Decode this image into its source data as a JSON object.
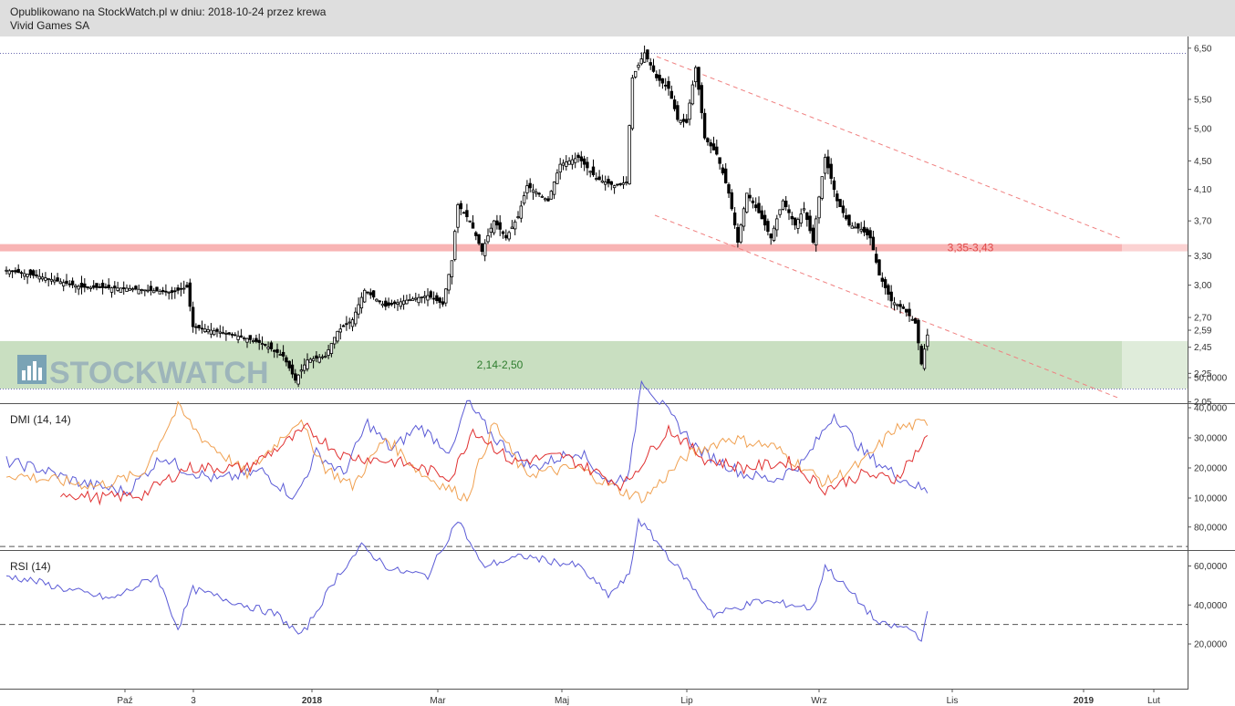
{
  "header": {
    "line1": "Opublikowano na StockWatch.pl w dniu: 2018-10-24 przez krewa",
    "line2": "Vivid Games SA"
  },
  "watermark": {
    "text": "STOCKWATCH",
    "icon": "bar-chart-icon"
  },
  "colors": {
    "candle": "#000000",
    "resistance_zone": "#f8b4b4",
    "support_zone": "#c9dfc1",
    "trend_channel": "#f08080",
    "dmi_plus": "#5b5bd6",
    "dmi_minus": "#f0a050",
    "adx": "#e03030",
    "rsi": "#5b5bd6"
  },
  "chart_data": [
    {
      "type": "candlestick",
      "title": "Vivid Games SA",
      "ylim": [
        2.05,
        6.5
      ],
      "y_scale": "log",
      "y_ticks": [
        "6,50",
        "5,50",
        "5,00",
        "4,50",
        "4,10",
        "3,70",
        "3,30",
        "3,00",
        "2,70",
        "2,59",
        "2,45",
        "2,25",
        "2,05"
      ],
      "x_ticks": [
        "Paź",
        "3",
        "2018",
        "Mar",
        "Maj",
        "Lip",
        "Wrz",
        "Lis",
        "2019",
        "Lut"
      ],
      "close_path": [
        {
          "i": 0,
          "v": 3.15
        },
        {
          "i": 12,
          "v": 3.08
        },
        {
          "i": 25,
          "v": 2.98
        },
        {
          "i": 40,
          "v": 2.97
        },
        {
          "i": 55,
          "v": 2.93
        },
        {
          "i": 60,
          "v": 2.98
        },
        {
          "i": 62,
          "v": 2.62
        },
        {
          "i": 72,
          "v": 2.57
        },
        {
          "i": 80,
          "v": 2.52
        },
        {
          "i": 85,
          "v": 2.48
        },
        {
          "i": 92,
          "v": 2.38
        },
        {
          "i": 96,
          "v": 2.2
        },
        {
          "i": 100,
          "v": 2.35
        },
        {
          "i": 106,
          "v": 2.38
        },
        {
          "i": 110,
          "v": 2.58
        },
        {
          "i": 115,
          "v": 2.68
        },
        {
          "i": 119,
          "v": 2.95
        },
        {
          "i": 126,
          "v": 2.8
        },
        {
          "i": 132,
          "v": 2.85
        },
        {
          "i": 140,
          "v": 2.9
        },
        {
          "i": 145,
          "v": 2.82
        },
        {
          "i": 148,
          "v": 3.25
        },
        {
          "i": 150,
          "v": 3.9
        },
        {
          "i": 154,
          "v": 3.7
        },
        {
          "i": 158,
          "v": 3.35
        },
        {
          "i": 162,
          "v": 3.7
        },
        {
          "i": 166,
          "v": 3.5
        },
        {
          "i": 170,
          "v": 3.75
        },
        {
          "i": 173,
          "v": 4.15
        },
        {
          "i": 180,
          "v": 3.95
        },
        {
          "i": 184,
          "v": 4.45
        },
        {
          "i": 190,
          "v": 4.55
        },
        {
          "i": 196,
          "v": 4.25
        },
        {
          "i": 202,
          "v": 4.15
        },
        {
          "i": 206,
          "v": 4.2
        },
        {
          "i": 208,
          "v": 5.9
        },
        {
          "i": 212,
          "v": 6.4
        },
        {
          "i": 216,
          "v": 5.9
        },
        {
          "i": 220,
          "v": 5.7
        },
        {
          "i": 223,
          "v": 5.15
        },
        {
          "i": 226,
          "v": 5.1
        },
        {
          "i": 229,
          "v": 6.1
        },
        {
          "i": 232,
          "v": 4.85
        },
        {
          "i": 236,
          "v": 4.6
        },
        {
          "i": 240,
          "v": 4.05
        },
        {
          "i": 243,
          "v": 3.45
        },
        {
          "i": 246,
          "v": 4.05
        },
        {
          "i": 250,
          "v": 3.8
        },
        {
          "i": 254,
          "v": 3.5
        },
        {
          "i": 258,
          "v": 3.95
        },
        {
          "i": 262,
          "v": 3.65
        },
        {
          "i": 265,
          "v": 3.85
        },
        {
          "i": 268,
          "v": 3.45
        },
        {
          "i": 272,
          "v": 4.55
        },
        {
          "i": 276,
          "v": 3.95
        },
        {
          "i": 280,
          "v": 3.65
        },
        {
          "i": 284,
          "v": 3.6
        },
        {
          "i": 287,
          "v": 3.5
        },
        {
          "i": 290,
          "v": 3.1
        },
        {
          "i": 294,
          "v": 2.85
        },
        {
          "i": 298,
          "v": 2.78
        },
        {
          "i": 302,
          "v": 2.65
        },
        {
          "i": 304,
          "v": 2.32
        },
        {
          "i": 306,
          "v": 2.55
        }
      ],
      "zones": [
        {
          "label": "3,35-3,43",
          "low": 3.35,
          "high": 3.43
        },
        {
          "label": "2,14-2,50",
          "low": 2.14,
          "high": 2.5
        }
      ],
      "dotted_levels": [
        6.4,
        2.14
      ]
    },
    {
      "type": "line",
      "title": "DMI (14, 14)",
      "ylim": [
        5,
        53
      ],
      "y_ticks": [
        "50,0000",
        "40,0000",
        "30,0000",
        "20,0000",
        "10,0000"
      ],
      "series": [
        {
          "path": [
            {
              "i": 0,
              "v": 22
            },
            {
              "i": 10,
              "v": 20
            },
            {
              "i": 25,
              "v": 15
            },
            {
              "i": 40,
              "v": 12
            },
            {
              "i": 52,
              "v": 24
            },
            {
              "i": 58,
              "v": 20
            },
            {
              "i": 70,
              "v": 16
            },
            {
              "i": 85,
              "v": 19
            },
            {
              "i": 96,
              "v": 10
            },
            {
              "i": 103,
              "v": 25
            },
            {
              "i": 112,
              "v": 18
            },
            {
              "i": 120,
              "v": 35
            },
            {
              "i": 128,
              "v": 26
            },
            {
              "i": 137,
              "v": 34
            },
            {
              "i": 148,
              "v": 25
            },
            {
              "i": 153,
              "v": 42
            },
            {
              "i": 162,
              "v": 30
            },
            {
              "i": 175,
              "v": 20
            },
            {
              "i": 190,
              "v": 26
            },
            {
              "i": 200,
              "v": 15
            },
            {
              "i": 207,
              "v": 18
            },
            {
              "i": 211,
              "v": 50
            },
            {
              "i": 220,
              "v": 38
            },
            {
              "i": 230,
              "v": 26
            },
            {
              "i": 245,
              "v": 18
            },
            {
              "i": 255,
              "v": 16
            },
            {
              "i": 265,
              "v": 22
            },
            {
              "i": 275,
              "v": 38
            },
            {
              "i": 285,
              "v": 25
            },
            {
              "i": 295,
              "v": 18
            },
            {
              "i": 306,
              "v": 12
            }
          ]
        },
        {
          "path": [
            {
              "i": 0,
              "v": 18
            },
            {
              "i": 15,
              "v": 16
            },
            {
              "i": 30,
              "v": 14
            },
            {
              "i": 45,
              "v": 18
            },
            {
              "i": 57,
              "v": 40
            },
            {
              "i": 65,
              "v": 30
            },
            {
              "i": 80,
              "v": 18
            },
            {
              "i": 97,
              "v": 36
            },
            {
              "i": 106,
              "v": 20
            },
            {
              "i": 115,
              "v": 14
            },
            {
              "i": 126,
              "v": 30
            },
            {
              "i": 138,
              "v": 18
            },
            {
              "i": 153,
              "v": 10
            },
            {
              "i": 162,
              "v": 35
            },
            {
              "i": 172,
              "v": 18
            },
            {
              "i": 190,
              "v": 20
            },
            {
              "i": 205,
              "v": 12
            },
            {
              "i": 212,
              "v": 10
            },
            {
              "i": 226,
              "v": 24
            },
            {
              "i": 240,
              "v": 30
            },
            {
              "i": 255,
              "v": 27
            },
            {
              "i": 272,
              "v": 15
            },
            {
              "i": 285,
              "v": 22
            },
            {
              "i": 295,
              "v": 33
            },
            {
              "i": 306,
              "v": 35
            }
          ]
        },
        {
          "path": [
            {
              "i": 18,
              "v": 12
            },
            {
              "i": 30,
              "v": 10
            },
            {
              "i": 45,
              "v": 11
            },
            {
              "i": 60,
              "v": 20
            },
            {
              "i": 80,
              "v": 20
            },
            {
              "i": 100,
              "v": 33
            },
            {
              "i": 112,
              "v": 24
            },
            {
              "i": 130,
              "v": 22
            },
            {
              "i": 148,
              "v": 17
            },
            {
              "i": 155,
              "v": 33
            },
            {
              "i": 168,
              "v": 22
            },
            {
              "i": 185,
              "v": 24
            },
            {
              "i": 205,
              "v": 14
            },
            {
              "i": 220,
              "v": 33
            },
            {
              "i": 232,
              "v": 23
            },
            {
              "i": 245,
              "v": 20
            },
            {
              "i": 260,
              "v": 22
            },
            {
              "i": 272,
              "v": 13
            },
            {
              "i": 285,
              "v": 18
            },
            {
              "i": 295,
              "v": 16
            },
            {
              "i": 306,
              "v": 30
            }
          ]
        }
      ]
    },
    {
      "type": "line",
      "title": "RSI (14)",
      "ylim": [
        18,
        86
      ],
      "y_ticks": [
        "80,0000",
        "60,0000",
        "40,0000",
        "20,0000"
      ],
      "reference_lines": [
        70,
        30
      ],
      "series": [
        {
          "path": [
            {
              "i": 0,
              "v": 55
            },
            {
              "i": 10,
              "v": 52
            },
            {
              "i": 20,
              "v": 48
            },
            {
              "i": 35,
              "v": 43
            },
            {
              "i": 50,
              "v": 55
            },
            {
              "i": 57,
              "v": 28
            },
            {
              "i": 62,
              "v": 48
            },
            {
              "i": 75,
              "v": 42
            },
            {
              "i": 90,
              "v": 35
            },
            {
              "i": 98,
              "v": 24
            },
            {
              "i": 110,
              "v": 55
            },
            {
              "i": 118,
              "v": 70
            },
            {
              "i": 128,
              "v": 58
            },
            {
              "i": 140,
              "v": 55
            },
            {
              "i": 150,
              "v": 84
            },
            {
              "i": 158,
              "v": 60
            },
            {
              "i": 172,
              "v": 65
            },
            {
              "i": 190,
              "v": 60
            },
            {
              "i": 200,
              "v": 45
            },
            {
              "i": 207,
              "v": 55
            },
            {
              "i": 210,
              "v": 84
            },
            {
              "i": 220,
              "v": 65
            },
            {
              "i": 235,
              "v": 35
            },
            {
              "i": 250,
              "v": 42
            },
            {
              "i": 262,
              "v": 40
            },
            {
              "i": 268,
              "v": 38
            },
            {
              "i": 272,
              "v": 60
            },
            {
              "i": 282,
              "v": 44
            },
            {
              "i": 290,
              "v": 30
            },
            {
              "i": 300,
              "v": 28
            },
            {
              "i": 304,
              "v": 23
            },
            {
              "i": 306,
              "v": 35
            }
          ]
        }
      ]
    }
  ]
}
